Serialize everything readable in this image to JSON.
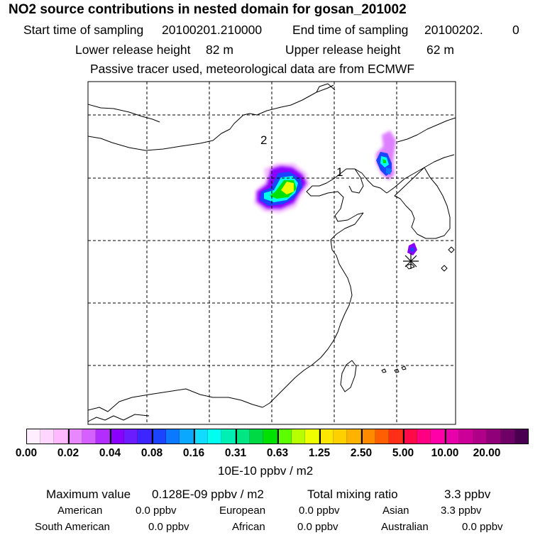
{
  "header": {
    "title": "NO2 source contributions in nested domain for gosan_201002",
    "start_label": "Start time of sampling",
    "start_value": "20100201.210000",
    "end_label": "End time of sampling",
    "end_value": "20100202.",
    "end_suffix": "0",
    "lower_label": "Lower release height",
    "lower_value": "82 m",
    "upper_label": "Upper release height",
    "upper_value": "62 m",
    "tracer_note": "Passive tracer used, meteorological data are from ECMWF"
  },
  "map": {
    "labels": {
      "point1": "1",
      "point2": "2"
    },
    "receptor_marker": "star-icon",
    "line_color": "#000000"
  },
  "legend": {
    "colors": [
      "#ffeeff",
      "#ffd6ff",
      "#ffb9ff",
      "#e887ff",
      "#d560ff",
      "#b12eff",
      "#8a00ff",
      "#6a1cff",
      "#3c26ff",
      "#1a44ff",
      "#0a78ff",
      "#0aa8ff",
      "#10dcff",
      "#00ffee",
      "#00f0b4",
      "#00e683",
      "#00d844",
      "#00e100",
      "#5cff00",
      "#b8ff00",
      "#eeff00",
      "#ffe600",
      "#ffd000",
      "#ffb300",
      "#ff8a00",
      "#ff5f00",
      "#ff2e16",
      "#ff0a48",
      "#ff0082",
      "#ff00a8",
      "#e800aa",
      "#cc0099",
      "#b0008a",
      "#900078",
      "#6e0066",
      "#4a0050"
    ],
    "ticks": [
      "0.00",
      "0.02",
      "0.04",
      "0.08",
      "0.16",
      "0.31",
      "0.63",
      "1.25",
      "2.50",
      "5.00",
      "10.00",
      "20.00"
    ],
    "unit": "10E-10 ppbv / m2"
  },
  "footer": {
    "max_label": "Maximum value",
    "max_value": "0.128E-09 ppbv / m2",
    "total_label": "Total mixing ratio",
    "total_value": "3.3 ppbv",
    "regions": [
      {
        "name": "American",
        "value": "0.0 ppbv"
      },
      {
        "name": "European",
        "value": "0.0 ppbv"
      },
      {
        "name": "Asian",
        "value": "3.3 ppbv"
      },
      {
        "name": "South American",
        "value": "0.0 ppbv"
      },
      {
        "name": "African",
        "value": "0.0 ppbv"
      },
      {
        "name": "Australian",
        "value": "0.0 ppbv"
      }
    ]
  }
}
